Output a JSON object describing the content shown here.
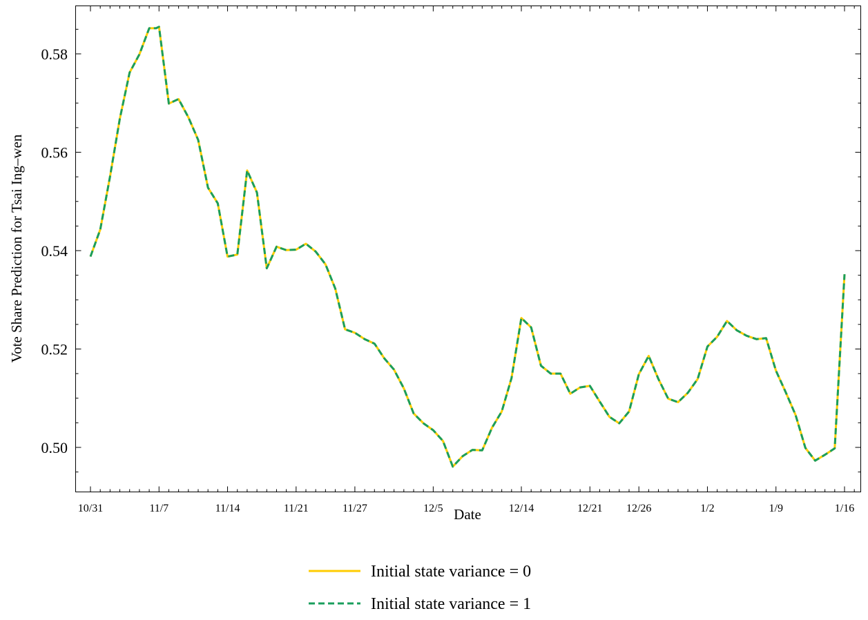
{
  "chart_data": {
    "type": "line",
    "title": "",
    "xlabel": "Date",
    "ylabel": "Vote Share Prediction for Tsai Ing–wen",
    "ylim": [
      0.4918,
      0.5917
    ],
    "xlim": [
      0,
      89
    ],
    "grid": false,
    "legend_placement": "bottom-center",
    "x_ticks": [
      {
        "label": "10/31",
        "x": 1
      },
      {
        "label": "11/7",
        "x": 8
      },
      {
        "label": "11/14",
        "x": 15
      },
      {
        "label": "11/21",
        "x": 22
      },
      {
        "label": "11/27",
        "x": 28
      },
      {
        "label": "12/5",
        "x": 36
      },
      {
        "label": "12/14",
        "x": 45
      },
      {
        "label": "12/21",
        "x": 52
      },
      {
        "label": "12/26",
        "x": 57
      },
      {
        "label": "1/2",
        "x": 64
      },
      {
        "label": "1/9",
        "x": 71
      },
      {
        "label": "1/16",
        "x": 78
      }
    ],
    "y_ticks": [
      {
        "label": "0.50",
        "value": 0.5
      },
      {
        "label": "0.52",
        "value": 0.52
      },
      {
        "label": "0.54",
        "value": 0.54
      },
      {
        "label": "0.56",
        "value": 0.56
      },
      {
        "label": "0.58",
        "value": 0.58
      }
    ],
    "x": [
      1,
      2,
      3,
      4,
      5,
      6,
      7,
      7.7,
      8,
      9,
      10,
      11,
      12,
      13,
      14,
      15,
      16,
      17,
      18,
      19,
      20,
      21,
      22,
      23,
      24,
      25,
      26,
      27,
      28,
      29,
      30,
      31,
      32,
      33,
      34,
      35,
      36,
      37,
      38,
      39,
      40,
      41,
      42,
      43,
      44,
      45,
      46,
      47,
      48,
      49,
      50,
      51,
      52,
      53,
      54,
      55,
      56,
      57,
      58,
      59,
      60,
      61,
      62,
      63,
      64,
      65,
      66,
      67,
      68,
      69,
      70,
      71,
      72,
      73,
      74,
      75,
      76,
      77,
      78
    ],
    "series": [
      {
        "name": "Initial state variance = 0",
        "color": "#ffcc00",
        "dash": "solid",
        "values": [
          0.5388,
          0.5443,
          0.5551,
          0.5668,
          0.5762,
          0.5799,
          0.5852,
          0.5852,
          0.5855,
          0.5699,
          0.5708,
          0.5671,
          0.5625,
          0.5528,
          0.5496,
          0.5388,
          0.5392,
          0.5563,
          0.5518,
          0.5364,
          0.5408,
          0.5401,
          0.5402,
          0.5414,
          0.5398,
          0.5372,
          0.5323,
          0.524,
          0.5233,
          0.522,
          0.5211,
          0.5181,
          0.5158,
          0.512,
          0.5069,
          0.5049,
          0.5035,
          0.5013,
          0.4961,
          0.4982,
          0.4995,
          0.4994,
          0.504,
          0.5073,
          0.5141,
          0.5263,
          0.5244,
          0.5166,
          0.515,
          0.515,
          0.5109,
          0.5122,
          0.5125,
          0.5093,
          0.5062,
          0.5049,
          0.5073,
          0.5149,
          0.5186,
          0.5139,
          0.5099,
          0.5092,
          0.5111,
          0.5139,
          0.5205,
          0.5225,
          0.5257,
          0.5238,
          0.5227,
          0.522,
          0.5222,
          0.5156,
          0.5112,
          0.5066,
          0.4999,
          0.4973,
          0.4985,
          0.4998,
          0.5352
        ]
      },
      {
        "name": "Initial state variance = 1",
        "color": "#1a9e5c",
        "dash": "dashed",
        "values": [
          0.5388,
          0.5443,
          0.5551,
          0.5668,
          0.5762,
          0.5799,
          0.5852,
          0.5852,
          0.5855,
          0.5699,
          0.5708,
          0.5671,
          0.5625,
          0.5528,
          0.5496,
          0.5388,
          0.5392,
          0.5563,
          0.5518,
          0.5364,
          0.5408,
          0.5401,
          0.5402,
          0.5414,
          0.5398,
          0.5372,
          0.5323,
          0.524,
          0.5233,
          0.522,
          0.5211,
          0.5181,
          0.5158,
          0.512,
          0.5069,
          0.5049,
          0.5035,
          0.5013,
          0.4961,
          0.4982,
          0.4995,
          0.4994,
          0.504,
          0.5073,
          0.5141,
          0.5263,
          0.5244,
          0.5166,
          0.515,
          0.515,
          0.5109,
          0.5122,
          0.5125,
          0.5093,
          0.5062,
          0.5049,
          0.5073,
          0.5149,
          0.5186,
          0.5139,
          0.5099,
          0.5092,
          0.5111,
          0.5139,
          0.5205,
          0.5225,
          0.5257,
          0.5238,
          0.5227,
          0.522,
          0.5222,
          0.5156,
          0.5112,
          0.5066,
          0.4999,
          0.4973,
          0.4985,
          0.4998,
          0.5352
        ]
      }
    ]
  }
}
